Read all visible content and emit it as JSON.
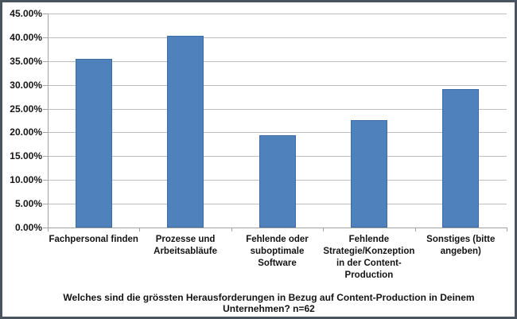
{
  "chart_data": {
    "type": "bar",
    "categories": [
      "Fachpersonal finden",
      "Prozesse und\nArbeitsabläufe",
      "Fehlende oder\nsuboptimale\nSoftware",
      "Fehlende\nStrategie/Konzeption\nin der Content-\nProduction",
      "Sonstiges (bitte\nangeben)"
    ],
    "values": [
      35.48,
      40.32,
      19.35,
      22.58,
      29.03
    ],
    "title": "Welches sind die grössten Herausforderungen in Bezug auf Content-Production in Deinem\nUnternehmen? n=62",
    "xlabel": "",
    "ylabel": "",
    "ylim": [
      0,
      45
    ],
    "ytick_step": 5,
    "ytick_labels": [
      "0.00%",
      "5.00%",
      "10.00%",
      "15.00%",
      "20.00%",
      "25.00%",
      "30.00%",
      "35.00%",
      "40.00%",
      "45.00%"
    ],
    "grid": true,
    "legend": false,
    "sample_size": "n=62",
    "colors": {
      "bar_fill": "#4F81BD",
      "bar_border": "#3D6BA6",
      "gridline": "#BFBFBF",
      "axis": "#A3A3A3",
      "text": "#141414",
      "outer_border": "#49545E",
      "background": "#FFFFFF"
    }
  }
}
